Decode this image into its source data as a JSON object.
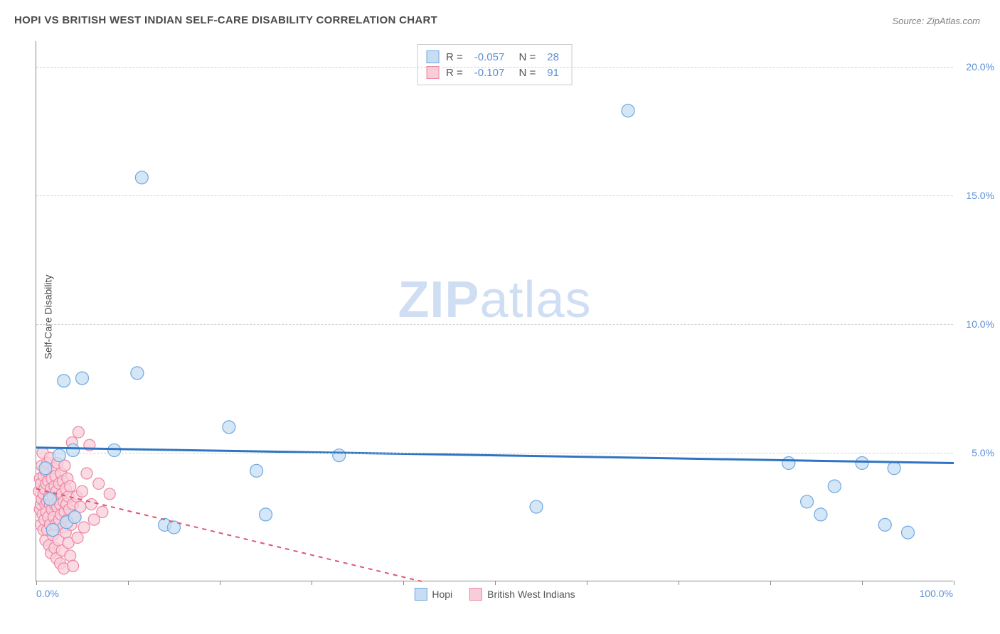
{
  "title": "HOPI VS BRITISH WEST INDIAN SELF-CARE DISABILITY CORRELATION CHART",
  "source": "Source: ZipAtlas.com",
  "y_axis_label": "Self-Care Disability",
  "watermark": {
    "zip": "ZIP",
    "atlas": "atlas"
  },
  "chart": {
    "type": "scatter",
    "background_color": "#ffffff",
    "grid_color": "#d0d0d0",
    "axis_color": "#888888",
    "xlim": [
      0,
      100
    ],
    "ylim": [
      0,
      21
    ],
    "y_ticks": [
      {
        "v": 5,
        "label": "5.0%"
      },
      {
        "v": 10,
        "label": "10.0%"
      },
      {
        "v": 15,
        "label": "15.0%"
      },
      {
        "v": 20,
        "label": "20.0%"
      }
    ],
    "x_vticks": [
      0,
      10,
      20,
      30,
      40,
      50,
      60,
      70,
      80,
      90,
      100
    ],
    "x_tick_labels": [
      {
        "v": 0,
        "label": "0.0%",
        "align": "left"
      },
      {
        "v": 100,
        "label": "100.0%",
        "align": "right"
      }
    ],
    "series": [
      {
        "name": "Hopi",
        "color_fill": "#c7ddf3",
        "color_stroke": "#6ea8e0",
        "line_color": "#2f74c2",
        "line_width": 3,
        "line_dash": "solid",
        "marker_radius": 9,
        "R": "-0.057",
        "N": "28",
        "trend": {
          "x1": 0,
          "y1": 5.2,
          "x2": 100,
          "y2": 4.6
        },
        "points": [
          [
            1.0,
            4.4
          ],
          [
            1.5,
            3.2
          ],
          [
            1.8,
            2.0
          ],
          [
            2.5,
            4.9
          ],
          [
            3.0,
            7.8
          ],
          [
            3.3,
            2.3
          ],
          [
            4.0,
            5.1
          ],
          [
            4.2,
            2.5
          ],
          [
            5.0,
            7.9
          ],
          [
            8.5,
            5.1
          ],
          [
            11.0,
            8.1
          ],
          [
            11.5,
            15.7
          ],
          [
            14.0,
            2.2
          ],
          [
            15.0,
            2.1
          ],
          [
            21.0,
            6.0
          ],
          [
            24.0,
            4.3
          ],
          [
            25.0,
            2.6
          ],
          [
            33.0,
            4.9
          ],
          [
            54.5,
            2.9
          ],
          [
            64.5,
            18.3
          ],
          [
            82.0,
            4.6
          ],
          [
            84.0,
            3.1
          ],
          [
            85.5,
            2.6
          ],
          [
            87.0,
            3.7
          ],
          [
            90.0,
            4.6
          ],
          [
            92.5,
            2.2
          ],
          [
            93.5,
            4.4
          ],
          [
            95.0,
            1.9
          ]
        ]
      },
      {
        "name": "British West Indians",
        "color_fill": "#f8cdd9",
        "color_stroke": "#ec87a4",
        "line_color": "#e05576",
        "line_width": 2,
        "line_dash": "dashed",
        "marker_radius": 8,
        "R": "-0.107",
        "N": "91",
        "trend": {
          "x1": 0,
          "y1": 3.6,
          "x2": 42,
          "y2": 0.0
        },
        "points": [
          [
            0.3,
            3.5
          ],
          [
            0.4,
            2.8
          ],
          [
            0.4,
            4.0
          ],
          [
            0.5,
            3.0
          ],
          [
            0.5,
            3.8
          ],
          [
            0.5,
            2.2
          ],
          [
            0.6,
            4.5
          ],
          [
            0.6,
            3.2
          ],
          [
            0.7,
            2.6
          ],
          [
            0.7,
            5.0
          ],
          [
            0.8,
            3.4
          ],
          [
            0.8,
            2.0
          ],
          [
            0.8,
            4.1
          ],
          [
            0.9,
            3.6
          ],
          [
            0.9,
            2.4
          ],
          [
            1.0,
            3.0
          ],
          [
            1.0,
            4.3
          ],
          [
            1.0,
            1.6
          ],
          [
            1.1,
            3.8
          ],
          [
            1.1,
            2.7
          ],
          [
            1.2,
            4.6
          ],
          [
            1.2,
            3.1
          ],
          [
            1.2,
            2.0
          ],
          [
            1.3,
            3.9
          ],
          [
            1.3,
            2.5
          ],
          [
            1.4,
            3.3
          ],
          [
            1.4,
            1.4
          ],
          [
            1.5,
            4.8
          ],
          [
            1.5,
            3.0
          ],
          [
            1.5,
            2.2
          ],
          [
            1.6,
            3.6
          ],
          [
            1.6,
            1.1
          ],
          [
            1.7,
            4.0
          ],
          [
            1.7,
            2.8
          ],
          [
            1.8,
            3.3
          ],
          [
            1.8,
            1.8
          ],
          [
            1.9,
            4.4
          ],
          [
            1.9,
            2.5
          ],
          [
            2.0,
            3.7
          ],
          [
            2.0,
            3.0
          ],
          [
            2.0,
            1.3
          ],
          [
            2.1,
            4.1
          ],
          [
            2.1,
            2.2
          ],
          [
            2.2,
            3.5
          ],
          [
            2.2,
            0.9
          ],
          [
            2.3,
            2.9
          ],
          [
            2.3,
            4.6
          ],
          [
            2.4,
            3.2
          ],
          [
            2.4,
            1.6
          ],
          [
            2.5,
            3.8
          ],
          [
            2.5,
            2.4
          ],
          [
            2.6,
            3.0
          ],
          [
            2.6,
            0.7
          ],
          [
            2.7,
            4.2
          ],
          [
            2.7,
            2.6
          ],
          [
            2.8,
            3.4
          ],
          [
            2.8,
            1.2
          ],
          [
            2.9,
            3.9
          ],
          [
            2.9,
            2.1
          ],
          [
            3.0,
            3.1
          ],
          [
            3.0,
            0.5
          ],
          [
            3.1,
            4.5
          ],
          [
            3.1,
            2.7
          ],
          [
            3.2,
            3.6
          ],
          [
            3.2,
            1.9
          ],
          [
            3.3,
            3.0
          ],
          [
            3.4,
            2.4
          ],
          [
            3.4,
            4.0
          ],
          [
            3.5,
            1.5
          ],
          [
            3.5,
            3.3
          ],
          [
            3.6,
            2.8
          ],
          [
            3.7,
            3.7
          ],
          [
            3.7,
            1.0
          ],
          [
            3.8,
            2.2
          ],
          [
            3.9,
            5.4
          ],
          [
            4.0,
            3.0
          ],
          [
            4.0,
            0.6
          ],
          [
            4.2,
            2.5
          ],
          [
            4.4,
            3.3
          ],
          [
            4.5,
            1.7
          ],
          [
            4.6,
            5.8
          ],
          [
            4.8,
            2.9
          ],
          [
            5.0,
            3.5
          ],
          [
            5.2,
            2.1
          ],
          [
            5.5,
            4.2
          ],
          [
            5.8,
            5.3
          ],
          [
            6.0,
            3.0
          ],
          [
            6.3,
            2.4
          ],
          [
            6.8,
            3.8
          ],
          [
            7.2,
            2.7
          ],
          [
            8.0,
            3.4
          ]
        ]
      }
    ]
  },
  "legend_bottom": {
    "series1": "Hopi",
    "series2": "British West Indians"
  }
}
